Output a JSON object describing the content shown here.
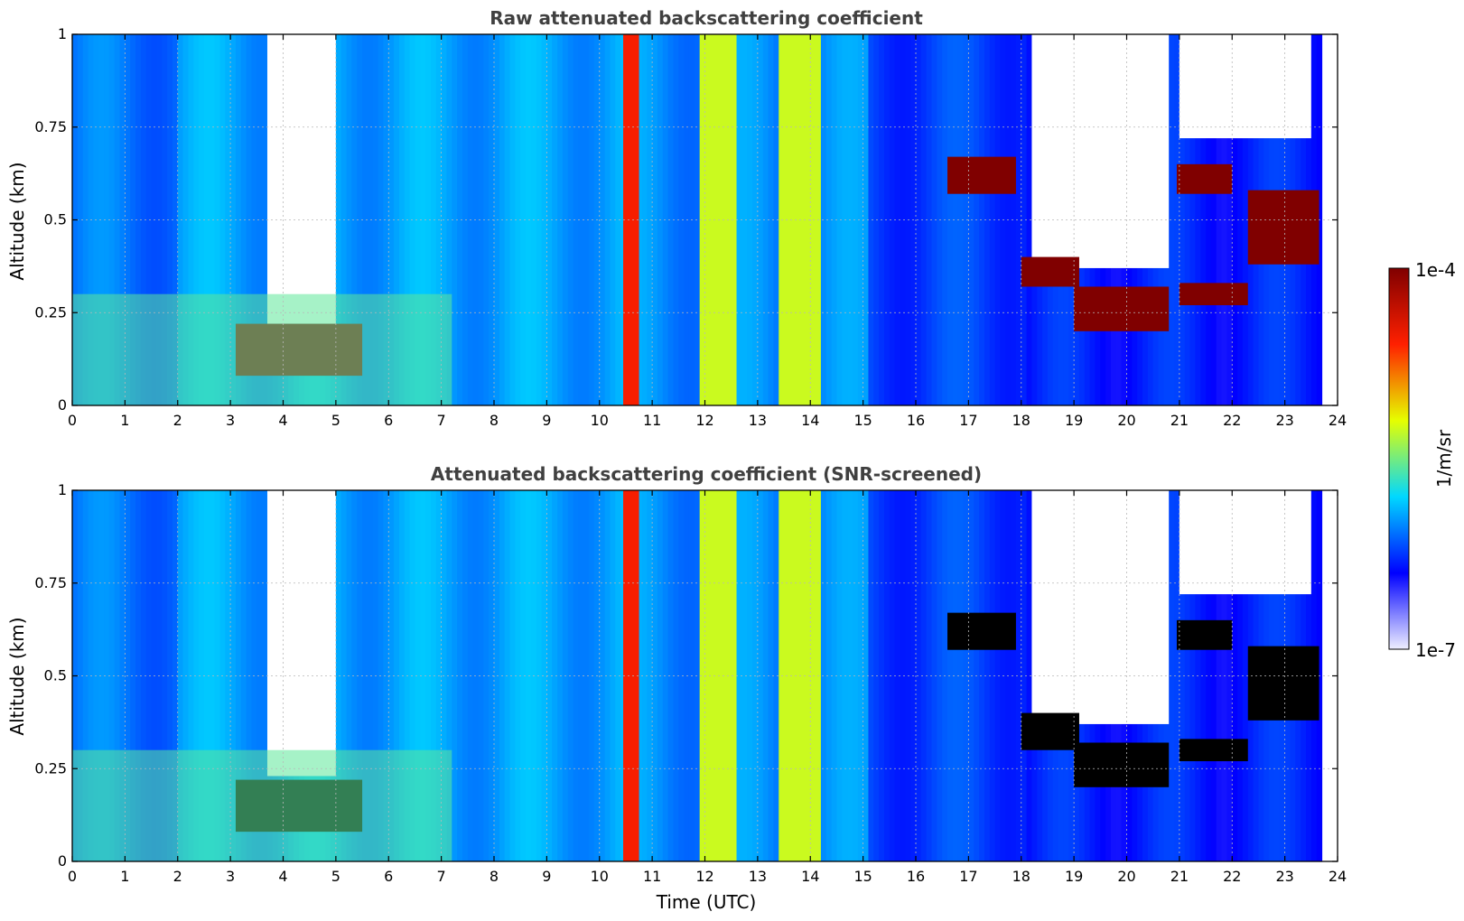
{
  "chart_data": [
    {
      "type": "heatmap",
      "title": "Raw attenuated backscattering coefficient",
      "xlabel": "",
      "ylabel": "Altitude (km)",
      "xlim": [
        0,
        24
      ],
      "ylim": [
        0,
        1
      ],
      "x_ticks": [
        "0",
        "1",
        "2",
        "3",
        "4",
        "5",
        "6",
        "7",
        "8",
        "9",
        "10",
        "11",
        "12",
        "13",
        "14",
        "15",
        "16",
        "17",
        "18",
        "19",
        "20",
        "21",
        "22",
        "23",
        "24"
      ],
      "y_ticks": [
        "0",
        "0.25",
        "0.5",
        "0.75",
        "1"
      ],
      "grid": true,
      "data_end_x": 23.7,
      "features": [
        {
          "kind": "missing",
          "x": [
            3.7,
            5.0
          ],
          "y": [
            0.22,
            1.0
          ]
        },
        {
          "kind": "high",
          "x": [
            3.1,
            5.5
          ],
          "y": [
            0.08,
            0.22
          ]
        },
        {
          "kind": "moderate",
          "x": [
            0,
            7.2
          ],
          "y": [
            0,
            0.3
          ]
        },
        {
          "kind": "high-column",
          "x": [
            10.45,
            10.75
          ],
          "y": [
            0,
            1
          ]
        },
        {
          "kind": "moderate-column",
          "x": [
            11.9,
            12.6
          ],
          "y": [
            0,
            1
          ]
        },
        {
          "kind": "moderate-column",
          "x": [
            13.4,
            14.2
          ],
          "y": [
            0,
            1
          ]
        },
        {
          "kind": "missing",
          "x": [
            18.2,
            20.8
          ],
          "y": [
            0.37,
            1.0
          ]
        },
        {
          "kind": "missing",
          "x": [
            21.0,
            23.5
          ],
          "y": [
            0.72,
            1.0
          ]
        },
        {
          "kind": "high",
          "x": [
            16.6,
            17.9
          ],
          "y": [
            0.57,
            0.67
          ]
        },
        {
          "kind": "high",
          "x": [
            18.0,
            19.1
          ],
          "y": [
            0.32,
            0.4
          ]
        },
        {
          "kind": "high",
          "x": [
            19.0,
            20.8
          ],
          "y": [
            0.2,
            0.32
          ]
        },
        {
          "kind": "high",
          "x": [
            20.95,
            22.0
          ],
          "y": [
            0.57,
            0.65
          ]
        },
        {
          "kind": "high",
          "x": [
            21.0,
            22.3
          ],
          "y": [
            0.27,
            0.33
          ]
        },
        {
          "kind": "high",
          "x": [
            22.3,
            23.65
          ],
          "y": [
            0.38,
            0.58
          ]
        }
      ]
    },
    {
      "type": "heatmap",
      "title": "Attenuated backscattering coefficient (SNR-screened)",
      "xlabel": "Time (UTC)",
      "ylabel": "Altitude (km)",
      "xlim": [
        0,
        24
      ],
      "ylim": [
        0,
        1
      ],
      "x_ticks": [
        "0",
        "1",
        "2",
        "3",
        "4",
        "5",
        "6",
        "7",
        "8",
        "9",
        "10",
        "11",
        "12",
        "13",
        "14",
        "15",
        "16",
        "17",
        "18",
        "19",
        "20",
        "21",
        "22",
        "23",
        "24"
      ],
      "y_ticks": [
        "0",
        "0.25",
        "0.5",
        "0.75",
        "1"
      ],
      "grid": true,
      "data_end_x": 23.7,
      "features": [
        {
          "kind": "missing",
          "x": [
            3.7,
            5.0
          ],
          "y": [
            0.23,
            1.0
          ]
        },
        {
          "kind": "screened",
          "x": [
            3.1,
            5.5
          ],
          "y": [
            0.08,
            0.22
          ]
        },
        {
          "kind": "moderate",
          "x": [
            0,
            7.2
          ],
          "y": [
            0,
            0.3
          ]
        },
        {
          "kind": "high-column",
          "x": [
            10.45,
            10.75
          ],
          "y": [
            0,
            1
          ]
        },
        {
          "kind": "moderate-column",
          "x": [
            11.9,
            12.6
          ],
          "y": [
            0,
            1
          ]
        },
        {
          "kind": "moderate-column",
          "x": [
            13.4,
            14.2
          ],
          "y": [
            0,
            1
          ]
        },
        {
          "kind": "missing",
          "x": [
            18.2,
            20.8
          ],
          "y": [
            0.37,
            1.0
          ]
        },
        {
          "kind": "missing",
          "x": [
            21.0,
            23.5
          ],
          "y": [
            0.72,
            1.0
          ]
        },
        {
          "kind": "screened",
          "x": [
            16.6,
            17.9
          ],
          "y": [
            0.57,
            0.67
          ]
        },
        {
          "kind": "screened",
          "x": [
            18.0,
            19.1
          ],
          "y": [
            0.3,
            0.4
          ]
        },
        {
          "kind": "screened",
          "x": [
            19.0,
            20.8
          ],
          "y": [
            0.2,
            0.32
          ]
        },
        {
          "kind": "screened",
          "x": [
            20.95,
            22.0
          ],
          "y": [
            0.57,
            0.65
          ]
        },
        {
          "kind": "screened",
          "x": [
            21.0,
            22.3
          ],
          "y": [
            0.27,
            0.33
          ]
        },
        {
          "kind": "screened",
          "x": [
            22.3,
            23.65
          ],
          "y": [
            0.38,
            0.58
          ]
        }
      ]
    }
  ],
  "colorbar": {
    "label": "1/m/sr",
    "max_label": "1e-4",
    "min_label": "1e-7",
    "scale": "log",
    "range": [
      1e-07,
      0.0001
    ],
    "colormap": "jet",
    "colors": [
      "#efefff",
      "#0000ff",
      "#00d8ff",
      "#e6ff00",
      "#ff2000",
      "#800000"
    ]
  }
}
